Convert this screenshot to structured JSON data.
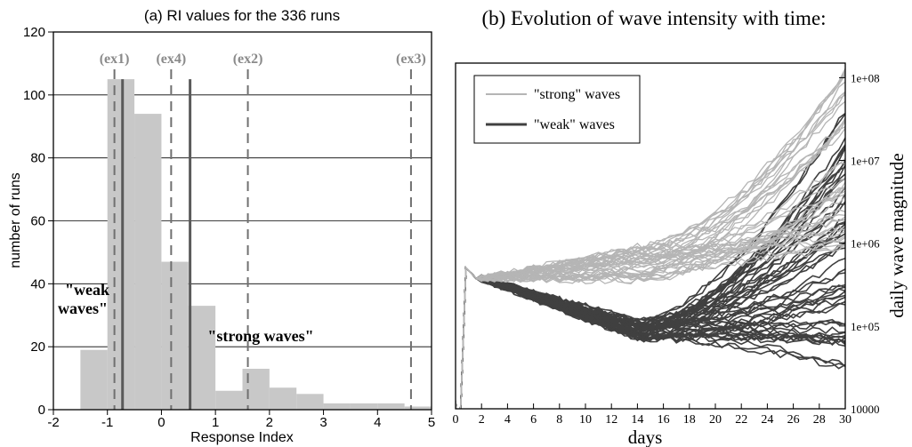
{
  "chart_data": [
    {
      "id": "panel-a",
      "type": "bar",
      "title": "(a) RI values for the 336 runs",
      "xlabel": "Response Index",
      "ylabel": "number of runs",
      "xlim": [
        -2,
        5
      ],
      "ylim": [
        0,
        120
      ],
      "xticks": [
        "-2",
        "-1",
        "0",
        "1",
        "2",
        "3",
        "4",
        "5"
      ],
      "yticks": [
        "0",
        "20",
        "40",
        "60",
        "80",
        "100",
        "120"
      ],
      "grid": "horizontal",
      "bin_width": 0.5,
      "bin_starts": [
        -1.5,
        -1.0,
        -0.5,
        0.0,
        0.5,
        1.0,
        1.5,
        2.0,
        2.5,
        3.0,
        3.5,
        4.0,
        4.5
      ],
      "values": [
        19,
        105,
        94,
        47,
        33,
        6,
        13,
        7,
        5,
        2,
        2,
        2,
        1
      ],
      "marker_lines": [
        {
          "label": "(ex1)",
          "x": -0.87
        },
        {
          "label": "(ex4)",
          "x": 0.18
        },
        {
          "label": "(ex2)",
          "x": 1.6
        },
        {
          "label": "(ex3)",
          "x": 4.62
        }
      ],
      "threshold_lines": [
        -0.72,
        0.53
      ],
      "annotations": {
        "weak_line1": "\"weak",
        "weak_line2": "waves\"",
        "strong": "\"strong waves\""
      }
    },
    {
      "id": "panel-b",
      "type": "line",
      "title": "(b)  Evolution of wave intensity with time:",
      "xlabel": "days",
      "ylabel": "daily wave magnitude",
      "xlim": [
        0,
        30
      ],
      "ylim": [
        10000,
        150000000
      ],
      "yscale": "log",
      "xticks": [
        "0",
        "2",
        "4",
        "6",
        "8",
        "10",
        "12",
        "14",
        "16",
        "18",
        "20",
        "22",
        "24",
        "26",
        "28",
        "30"
      ],
      "yticks": [
        "10000",
        "1e+05",
        "1e+06",
        "1e+07",
        "1e+08"
      ],
      "legend_position": "top-left",
      "legend": [
        {
          "name": "\"strong\" waves",
          "color": "#b5b5b5"
        },
        {
          "name": "\"weak\" waves",
          "color": "#404040"
        }
      ],
      "series_groups": {
        "strong": {
          "color": "#b5b5b5",
          "count": 40,
          "start_value": 450000,
          "day14_range": [
            350000,
            900000
          ],
          "day30_range": [
            900000,
            130000000
          ]
        },
        "weak": {
          "color": "#404040",
          "count": 55,
          "start_value": 450000,
          "day14_range": [
            70000,
            120000
          ],
          "day30_range": [
            30000,
            40000000
          ]
        }
      }
    }
  ]
}
